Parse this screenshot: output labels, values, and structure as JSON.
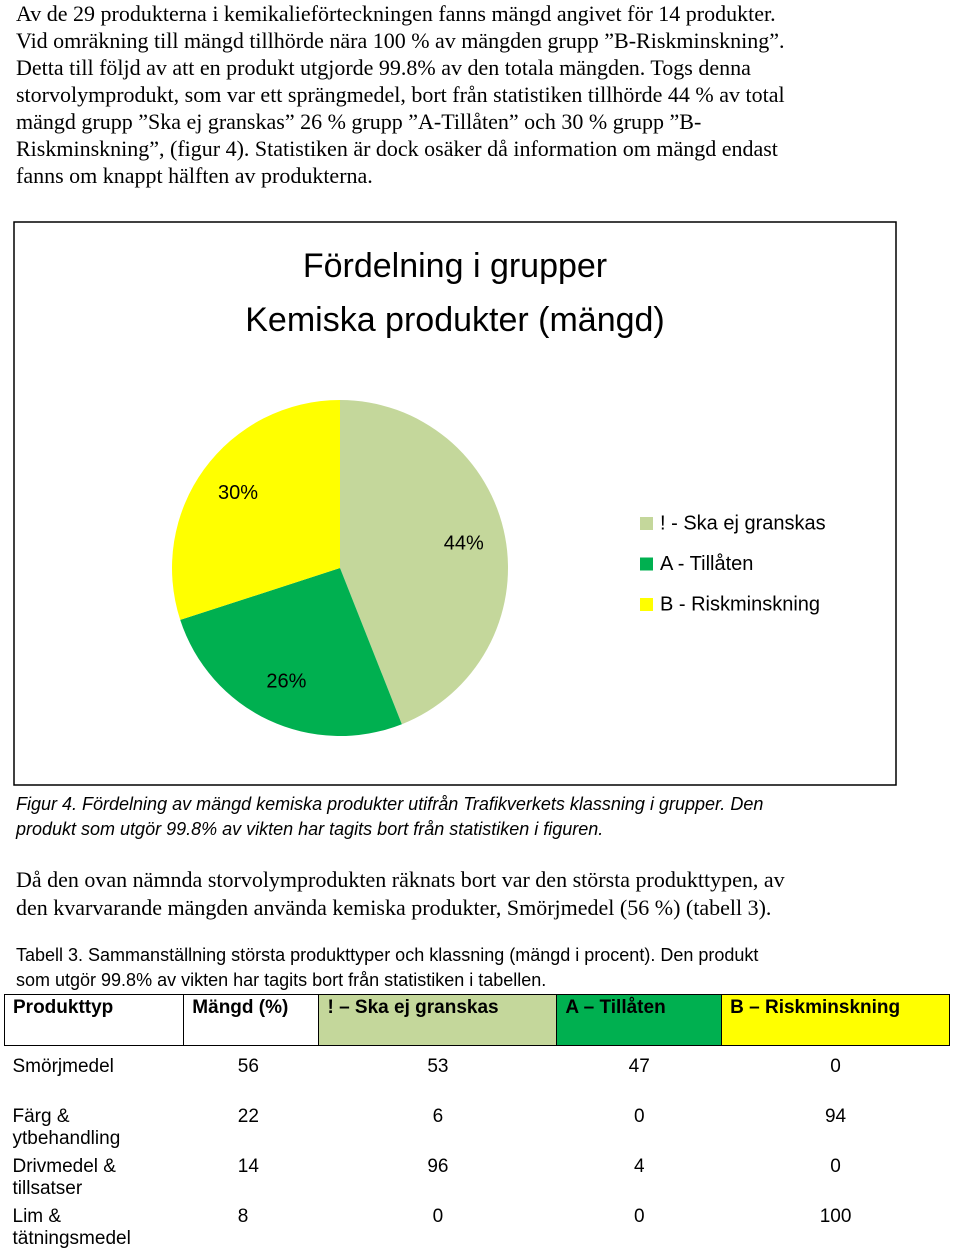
{
  "intro": {
    "lines": [
      "Av de 29 produkterna i kemikalieförteckningen fanns mängd angivet för 14 produkter.",
      "Vid omräkning till mängd tillhörde nära 100 % av mängden grupp ”B-Riskminskning”.",
      "Detta till följd av att en produkt utgjorde 99.8% av den totala mängden. Togs denna",
      "storvolymprodukt, som var ett sprängmedel, bort från statistiken tillhörde 44 % av total",
      "mängd grupp ”Ska ej granskas” 26 % grupp ”A-Tillåten” och 30 % grupp ”B-",
      "Riskminskning”, (figur 4). Statistiken är dock osäker då information om mängd endast",
      "fanns om knappt hälften av produkterna."
    ]
  },
  "chart_data": {
    "type": "pie",
    "title": "Fördelning i grupper",
    "subtitle": "Kemiska produkter (mängd)",
    "categories": [
      "! - Ska ej granskas",
      "A - Tillåten",
      "B - Riskminskning"
    ],
    "values": [
      44,
      26,
      30
    ],
    "value_labels": [
      "44%",
      "26%",
      "30%"
    ],
    "colors": [
      "#c4d79b",
      "#00b050",
      "#ffff00"
    ],
    "legend": "right"
  },
  "caption": {
    "lines": [
      "Figur 4. Fördelning av mängd kemiska produkter utifrån Trafikverkets klassning i grupper. Den",
      "produkt som utgör 99.8% av vikten har tagits bort från statistiken i figuren."
    ]
  },
  "para2": {
    "lines": [
      "Då den ovan nämnda storvolymprodukten räknats bort var den största produkttypen, av",
      "den kvarvarande mängden använda kemiska produkter, Smörjmedel (56 %) (tabell 3)."
    ]
  },
  "table_caption": {
    "lines": [
      "Tabell 3. Sammanställning största produkttyper och klassning (mängd i procent). Den produkt",
      "som utgör 99.8% av vikten har tagits bort från statistiken i tabellen."
    ]
  },
  "table": {
    "header": [
      "Produkttyp",
      "Mängd (%)",
      "! – Ska ej granskas",
      "A – Tillåten",
      "B – Riskminskning"
    ],
    "header_colors": [
      null,
      null,
      "#c4d79b",
      "#00b050",
      "#ffff00"
    ],
    "rows": [
      [
        "Smörjmedel",
        "56",
        "53",
        "47",
        "0"
      ],
      [
        "Färg & ytbehandling",
        "22",
        "6",
        "0",
        "94"
      ],
      [
        "Drivmedel & tillsatser",
        "14",
        "96",
        "4",
        "0"
      ],
      [
        "Lim & tätningsmedel",
        "8",
        "0",
        "0",
        "100"
      ]
    ]
  }
}
